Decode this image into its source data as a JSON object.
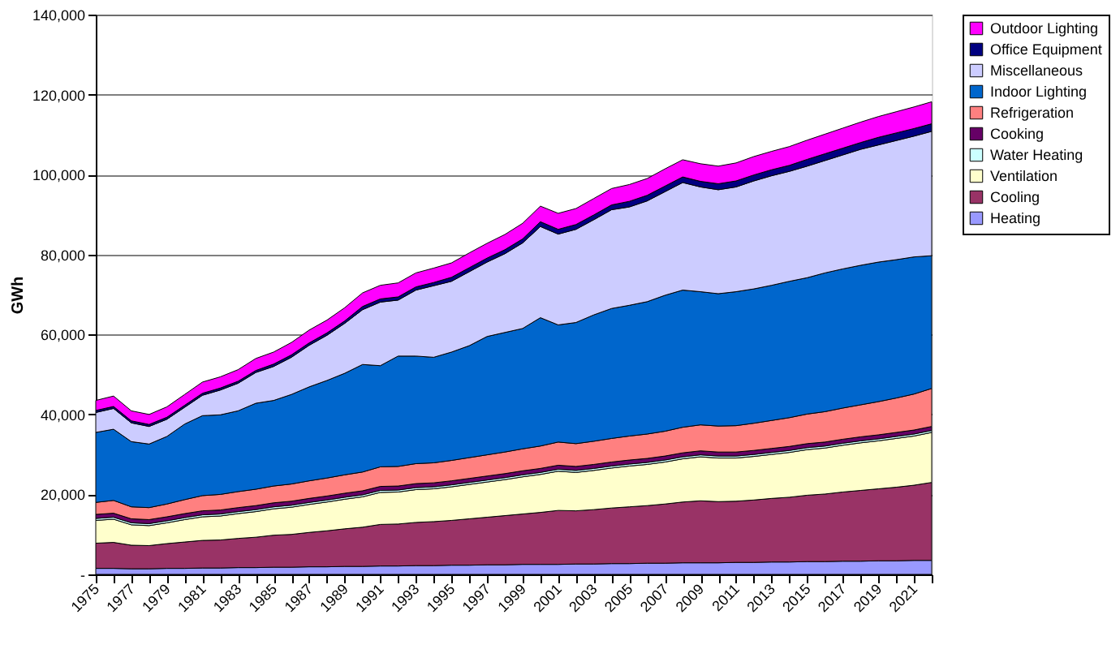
{
  "chart_data": {
    "type": "area",
    "stacked": true,
    "ylabel": "GWh",
    "legend": "right",
    "grid": "y",
    "categories": [
      "1975",
      null,
      "1977",
      null,
      "1979",
      null,
      "1981",
      null,
      "1983",
      null,
      "1985",
      null,
      "1987",
      null,
      "1989",
      null,
      "1991",
      null,
      "1993",
      null,
      "1995",
      null,
      "1997",
      null,
      "1999",
      null,
      "2001",
      null,
      "2003",
      null,
      "2005",
      null,
      "2007",
      null,
      "2009",
      null,
      "2011",
      null,
      "2013",
      null,
      "2015",
      null,
      "2017",
      null,
      "2019",
      null,
      "2021",
      null
    ],
    "ylim": [
      0,
      140000
    ],
    "yticks": [
      {
        "value": 0,
        "label": "-"
      },
      {
        "value": 20000,
        "label": "20,000"
      },
      {
        "value": 40000,
        "label": "40,000"
      },
      {
        "value": 60000,
        "label": "60,000"
      },
      {
        "value": 80000,
        "label": "80,000"
      },
      {
        "value": 100000,
        "label": "100,000"
      },
      {
        "value": 120000,
        "label": "120,000"
      },
      {
        "value": 140000,
        "label": "140,000"
      }
    ],
    "series": [
      {
        "name": "Heating",
        "color": "#9999ff",
        "values": [
          1500,
          1500,
          1400,
          1400,
          1500,
          1500,
          1600,
          1600,
          1700,
          1700,
          1800,
          1800,
          1900,
          1900,
          2000,
          2000,
          2100,
          2100,
          2200,
          2200,
          2300,
          2300,
          2400,
          2400,
          2500,
          2500,
          2500,
          2600,
          2600,
          2700,
          2700,
          2800,
          2800,
          2900,
          2900,
          2900,
          3000,
          3000,
          3100,
          3100,
          3200,
          3200,
          3300,
          3300,
          3400,
          3400,
          3500,
          3500
        ]
      },
      {
        "name": "Cooling",
        "color": "#993366",
        "values": [
          6300,
          6500,
          5900,
          5800,
          6200,
          6600,
          6900,
          7000,
          7300,
          7600,
          8000,
          8200,
          8600,
          9000,
          9400,
          9800,
          10400,
          10500,
          10800,
          11000,
          11200,
          11600,
          11900,
          12300,
          12600,
          13000,
          13500,
          13300,
          13600,
          13900,
          14200,
          14400,
          14800,
          15200,
          15500,
          15300,
          15300,
          15600,
          15900,
          16200,
          16600,
          16900,
          17300,
          17700,
          18000,
          18400,
          18800,
          19500
        ]
      },
      {
        "name": "Ventilation",
        "color": "#ffffcc",
        "values": [
          5700,
          5800,
          5100,
          5000,
          5200,
          5600,
          5900,
          6000,
          6200,
          6400,
          6600,
          6800,
          7000,
          7200,
          7400,
          7600,
          8000,
          8000,
          8200,
          8200,
          8400,
          8600,
          8800,
          9000,
          9300,
          9500,
          9800,
          9600,
          9800,
          10000,
          10200,
          10300,
          10500,
          10800,
          11000,
          10900,
          10800,
          10900,
          11000,
          11200,
          11400,
          11500,
          11700,
          11900,
          12000,
          12200,
          12300,
          12500
        ]
      },
      {
        "name": "Water Heating",
        "color": "#ccffff",
        "values": [
          500,
          500,
          500,
          500,
          500,
          500,
          500,
          500,
          500,
          500,
          500,
          500,
          500,
          500,
          500,
          500,
          500,
          500,
          500,
          500,
          500,
          500,
          500,
          500,
          500,
          500,
          500,
          500,
          500,
          500,
          500,
          500,
          500,
          500,
          500,
          500,
          500,
          500,
          500,
          500,
          500,
          500,
          500,
          500,
          500,
          500,
          500,
          500
        ]
      },
      {
        "name": "Cooking",
        "color": "#660066",
        "values": [
          1000,
          1000,
          1000,
          1000,
          1000,
          1000,
          1000,
          1000,
          1000,
          1000,
          1000,
          1000,
          1000,
          1000,
          1000,
          1000,
          1000,
          1000,
          1000,
          1000,
          1000,
          1000,
          1000,
          1000,
          1000,
          1000,
          1000,
          1000,
          1000,
          1000,
          1000,
          1000,
          1000,
          1000,
          1000,
          1000,
          1000,
          1000,
          1000,
          1000,
          1000,
          1000,
          1000,
          1000,
          1000,
          1000,
          1000,
          1000
        ]
      },
      {
        "name": "Refrigeration",
        "color": "#ff8080",
        "values": [
          3000,
          3200,
          3000,
          3000,
          3200,
          3500,
          3800,
          3900,
          4000,
          4100,
          4200,
          4300,
          4400,
          4500,
          4600,
          4700,
          4900,
          4900,
          5000,
          5000,
          5100,
          5200,
          5300,
          5400,
          5500,
          5600,
          5800,
          5700,
          5800,
          5900,
          6000,
          6100,
          6200,
          6400,
          6500,
          6500,
          6600,
          6800,
          7000,
          7200,
          7400,
          7600,
          7800,
          8000,
          8300,
          8600,
          9000,
          9500
        ]
      },
      {
        "name": "Indoor Lighting",
        "color": "#0066cc",
        "values": [
          17500,
          17800,
          16300,
          15900,
          16900,
          18900,
          20000,
          19900,
          20200,
          21500,
          21400,
          22400,
          23500,
          24400,
          25400,
          26900,
          25300,
          27600,
          26900,
          26400,
          27100,
          28000,
          29600,
          29900,
          30100,
          32100,
          29300,
          30300,
          31600,
          32500,
          32700,
          33100,
          34000,
          34300,
          33300,
          33100,
          33500,
          33600,
          33800,
          34100,
          34100,
          34700,
          34800,
          34900,
          34900,
          34600,
          34300,
          33200
        ]
      },
      {
        "name": "Miscellaneous",
        "color": "#ccccff",
        "values": [
          5000,
          5200,
          4700,
          4400,
          4300,
          4200,
          5100,
          6200,
          6900,
          7700,
          8500,
          9300,
          10400,
          11300,
          12500,
          13700,
          15900,
          14000,
          16500,
          17900,
          17700,
          18500,
          18600,
          19700,
          21400,
          22800,
          22700,
          23300,
          23800,
          24700,
          24600,
          25200,
          25900,
          26900,
          26200,
          26000,
          26200,
          27000,
          27400,
          27500,
          27900,
          28100,
          28500,
          29000,
          29300,
          29800,
          30200,
          31100
        ]
      },
      {
        "name": "Office Equipment",
        "color": "#000080",
        "values": [
          500,
          500,
          500,
          500,
          500,
          500,
          500,
          500,
          500,
          500,
          600,
          600,
          600,
          600,
          600,
          800,
          800,
          800,
          800,
          800,
          1000,
          1000,
          1000,
          1000,
          1000,
          1200,
          1200,
          1200,
          1200,
          1200,
          1400,
          1400,
          1400,
          1400,
          1400,
          1500,
          1500,
          1500,
          1500,
          1500,
          1700,
          1700,
          1700,
          1700,
          1900,
          1900,
          1900,
          1900
        ]
      },
      {
        "name": "Outdoor Lighting",
        "color": "#ff00ff",
        "values": [
          2500,
          2600,
          2500,
          2500,
          2600,
          2700,
          2800,
          2800,
          2900,
          3000,
          3000,
          3100,
          3200,
          3200,
          3300,
          3400,
          3400,
          3500,
          3500,
          3600,
          3600,
          3700,
          3700,
          3800,
          3900,
          3900,
          4000,
          4000,
          4100,
          4100,
          4200,
          4200,
          4300,
          4300,
          4400,
          4400,
          4500,
          4600,
          4600,
          4700,
          4800,
          4900,
          5000,
          5100,
          5200,
          5300,
          5400,
          5500
        ]
      }
    ]
  }
}
